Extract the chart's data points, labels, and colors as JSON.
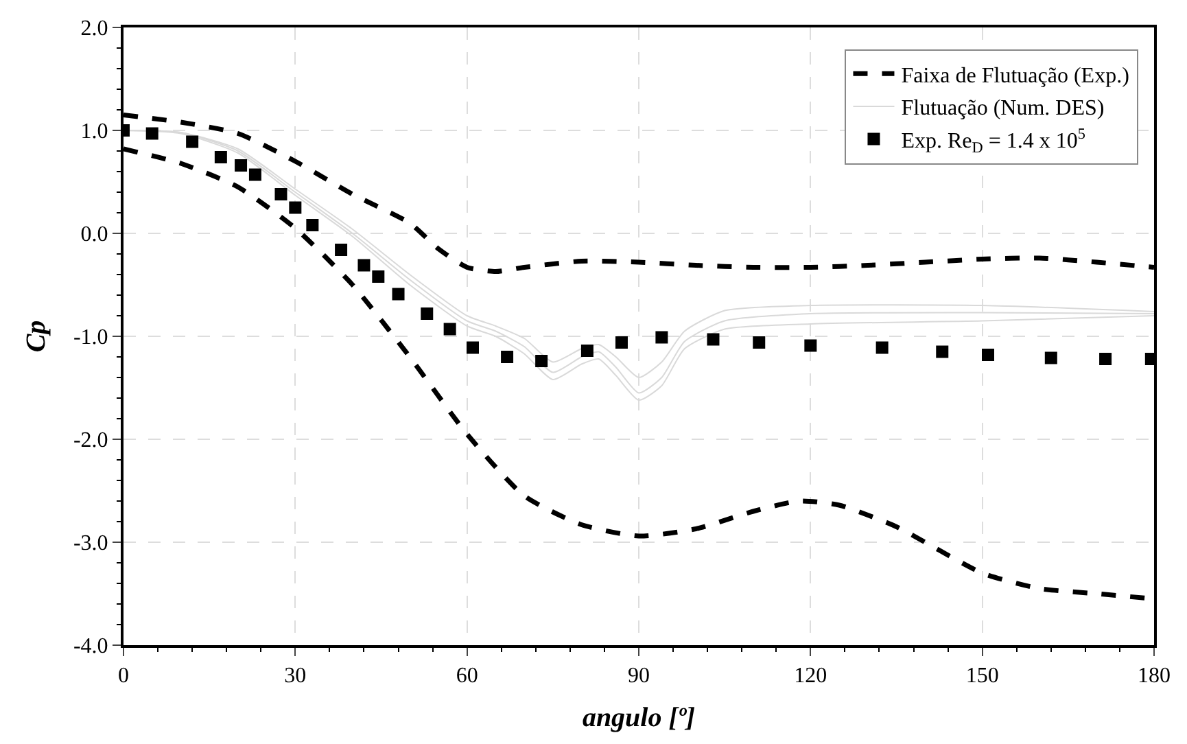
{
  "chart_data": {
    "type": "line",
    "xlabel": "angulo [º]",
    "ylabel": "Cp",
    "xlim": [
      0,
      180
    ],
    "xticks": [
      0,
      30,
      60,
      90,
      120,
      150,
      180
    ],
    "ylim": [
      -4,
      2
    ],
    "yticks": [
      {
        "value": -4,
        "label": "-4.0"
      },
      {
        "value": -3,
        "label": "-3.0"
      },
      {
        "value": -2,
        "label": "-2.0"
      },
      {
        "value": -1,
        "label": "-1.0"
      },
      {
        "value": 0,
        "label": "0.0"
      },
      {
        "value": 1,
        "label": "1.0"
      },
      {
        "value": 2,
        "label": "2.0"
      }
    ],
    "grid": true,
    "legend": "top right",
    "series": [
      {
        "name": "Faixa de Flutuação (Exp.)",
        "line_style": "dashed",
        "color": "#000000",
        "x": [
          0,
          10,
          20,
          30,
          40,
          50,
          55,
          60,
          65,
          70,
          80,
          90,
          100,
          110,
          120,
          130,
          140,
          150,
          160,
          170,
          180
        ],
        "values": [
          1.15,
          1.08,
          0.97,
          0.7,
          0.38,
          0.1,
          -0.15,
          -0.33,
          -0.37,
          -0.33,
          -0.27,
          -0.28,
          -0.31,
          -0.33,
          -0.33,
          -0.31,
          -0.28,
          -0.25,
          -0.24,
          -0.28,
          -0.33
        ]
      },
      {
        "line_style": "dashed",
        "color": "#000000",
        "x": [
          0,
          10,
          20,
          30,
          40,
          50,
          60,
          70,
          80,
          90,
          100,
          110,
          118,
          125,
          135,
          150,
          160,
          170,
          180
        ],
        "values": [
          0.82,
          0.68,
          0.45,
          0.05,
          -0.5,
          -1.2,
          -1.95,
          -2.55,
          -2.83,
          -2.94,
          -2.87,
          -2.7,
          -2.6,
          -2.64,
          -2.85,
          -3.3,
          -3.45,
          -3.5,
          -3.55
        ]
      },
      {
        "name": "Flutuação (Num. DES)",
        "line_style": "solid",
        "color": "#d9d9d9",
        "x": [
          0,
          10,
          20,
          30,
          40,
          50,
          60,
          65,
          70,
          75,
          80,
          83,
          86,
          90,
          94,
          98,
          105,
          120,
          150,
          180
        ],
        "values": [
          1.0,
          0.98,
          0.8,
          0.4,
          0.0,
          -0.45,
          -0.85,
          -0.95,
          -1.1,
          -1.35,
          -1.2,
          -1.15,
          -1.3,
          -1.55,
          -1.4,
          -1.05,
          -0.85,
          -0.78,
          -0.77,
          -0.78
        ]
      },
      {
        "line_style": "solid",
        "color": "#d9d9d9",
        "x": [
          0,
          10,
          20,
          30,
          40,
          50,
          60,
          65,
          70,
          75,
          80,
          83,
          86,
          90,
          94,
          98,
          105,
          120,
          150,
          180
        ],
        "values": [
          1.0,
          0.98,
          0.82,
          0.43,
          0.04,
          -0.4,
          -0.8,
          -0.9,
          -1.02,
          -1.25,
          -1.12,
          -1.08,
          -1.2,
          -1.4,
          -1.25,
          -0.95,
          -0.75,
          -0.7,
          -0.7,
          -0.76
        ]
      },
      {
        "line_style": "solid",
        "color": "#d9d9d9",
        "x": [
          0,
          10,
          20,
          30,
          40,
          50,
          60,
          65,
          70,
          75,
          80,
          83,
          86,
          90,
          94,
          98,
          105,
          120,
          150,
          180
        ],
        "values": [
          1.0,
          0.97,
          0.78,
          0.37,
          -0.03,
          -0.5,
          -0.9,
          -1.0,
          -1.17,
          -1.42,
          -1.27,
          -1.22,
          -1.38,
          -1.62,
          -1.48,
          -1.12,
          -0.93,
          -0.88,
          -0.85,
          -0.8
        ]
      },
      {
        "name": "Exp. Re$_{D}$ = 1.4 x 10$^{5}$",
        "type": "scatter",
        "marker": "square",
        "color": "#000000",
        "x": [
          0,
          5,
          12,
          17,
          20.5,
          23,
          27.5,
          30,
          33,
          38,
          42,
          44.5,
          48,
          53,
          57,
          61,
          67,
          73,
          81,
          87,
          94,
          103,
          111,
          120,
          132.5,
          143,
          151,
          162,
          171.5,
          179.5
        ],
        "values": [
          1.0,
          0.97,
          0.89,
          0.74,
          0.66,
          0.57,
          0.38,
          0.25,
          0.08,
          -0.16,
          -0.31,
          -0.42,
          -0.59,
          -0.78,
          -0.93,
          -1.11,
          -1.2,
          -1.24,
          -1.14,
          -1.06,
          -1.01,
          -1.03,
          -1.06,
          -1.09,
          -1.11,
          -1.15,
          -1.18,
          -1.21,
          -1.22,
          -1.22
        ]
      }
    ]
  }
}
